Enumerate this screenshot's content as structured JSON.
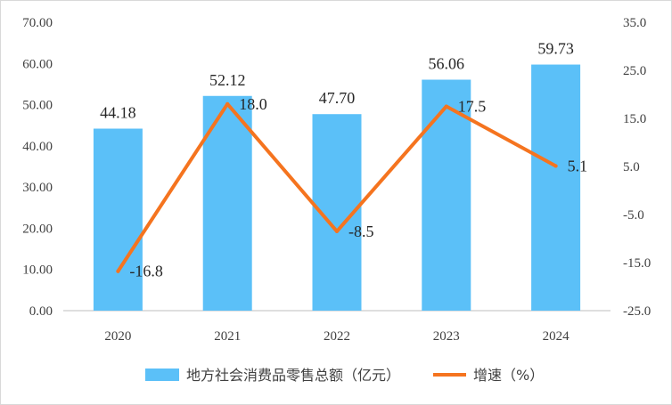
{
  "chart_data": {
    "type": "bar+line",
    "categories": [
      "2020",
      "2021",
      "2022",
      "2023",
      "2024"
    ],
    "series": [
      {
        "name": "地方社会消费品零售总额（亿元）",
        "type": "bar",
        "axis": "left",
        "values": [
          44.18,
          52.12,
          47.7,
          56.06,
          59.73
        ],
        "labels": [
          "44.18",
          "52.12",
          "47.70",
          "56.06",
          "59.73"
        ],
        "color": "#5bc0f8"
      },
      {
        "name": "增速（%）",
        "type": "line",
        "axis": "right",
        "values": [
          -16.8,
          18.0,
          -8.5,
          17.5,
          5.1
        ],
        "labels": [
          "-16.8",
          "18.0",
          "-8.5",
          "17.5",
          "5.1"
        ],
        "color": "#f5741f"
      }
    ],
    "y_left": {
      "range": [
        0,
        70
      ],
      "ticks": [
        "0.00",
        "10.00",
        "20.00",
        "30.00",
        "40.00",
        "50.00",
        "60.00",
        "70.00"
      ]
    },
    "y_right": {
      "range": [
        -25,
        35
      ],
      "ticks": [
        "-25.0",
        "-15.0",
        "-5.0",
        "5.0",
        "15.0",
        "25.0",
        "35.0"
      ]
    },
    "grid": false,
    "legend": "bottom"
  }
}
